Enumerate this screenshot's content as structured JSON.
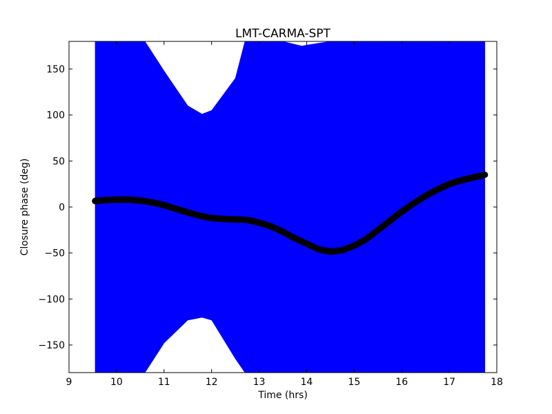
{
  "chart_data": {
    "type": "scatter",
    "title": "LMT-CARMA-SPT",
    "xlabel": "Time (hrs)",
    "ylabel": "Closure phase (deg)",
    "xlim": [
      9,
      18
    ],
    "ylim": [
      -180,
      180
    ],
    "xticks": [
      9,
      10,
      11,
      12,
      13,
      14,
      15,
      16,
      17,
      18
    ],
    "yticks": [
      -150,
      -100,
      -50,
      0,
      50,
      100,
      150
    ],
    "ytick_labels": [
      "−150",
      "−100",
      "−50",
      "0",
      "50",
      "100",
      "150"
    ],
    "grid": false,
    "legend": "none",
    "series": [
      {
        "role": "error-band",
        "color": "#0000ff",
        "x": [
          9.55,
          10.0,
          10.5,
          10.6,
          11.0,
          11.5,
          11.8,
          12.0,
          12.5,
          12.7,
          13.0,
          13.5,
          13.9,
          14.0,
          14.5,
          15.0,
          15.5,
          16.0,
          16.5,
          17.0,
          17.5,
          17.75
        ],
        "upper": [
          180,
          180,
          180,
          180,
          148,
          110,
          101,
          105,
          140,
          180,
          180,
          180,
          175,
          176,
          180,
          180,
          180,
          180,
          180,
          180,
          180,
          180
        ],
        "lower": [
          -180,
          -180,
          -180,
          -180,
          -148,
          -123,
          -120,
          -123,
          -165,
          -180,
          -180,
          -180,
          -180,
          -180,
          -180,
          -180,
          -180,
          -180,
          -180,
          -180,
          -180,
          -180
        ]
      },
      {
        "role": "points",
        "color": "#000000",
        "x": [
          9.55,
          9.75,
          10.0,
          10.25,
          10.5,
          10.75,
          11.0,
          11.25,
          11.5,
          11.75,
          12.0,
          12.25,
          12.5,
          12.75,
          13.0,
          13.25,
          13.5,
          13.75,
          14.0,
          14.25,
          14.5,
          14.75,
          15.0,
          15.25,
          15.5,
          15.75,
          16.0,
          16.25,
          16.5,
          16.75,
          17.0,
          17.25,
          17.5,
          17.75
        ],
        "y": [
          6.5,
          7.5,
          8,
          8,
          7,
          5,
          2,
          -2,
          -6,
          -9.5,
          -12,
          -13,
          -13.5,
          -14,
          -17,
          -21,
          -27,
          -34,
          -40,
          -46,
          -48.5,
          -47,
          -42,
          -35,
          -25,
          -15,
          -5,
          4,
          12,
          19,
          25,
          29,
          32,
          35
        ]
      }
    ]
  }
}
